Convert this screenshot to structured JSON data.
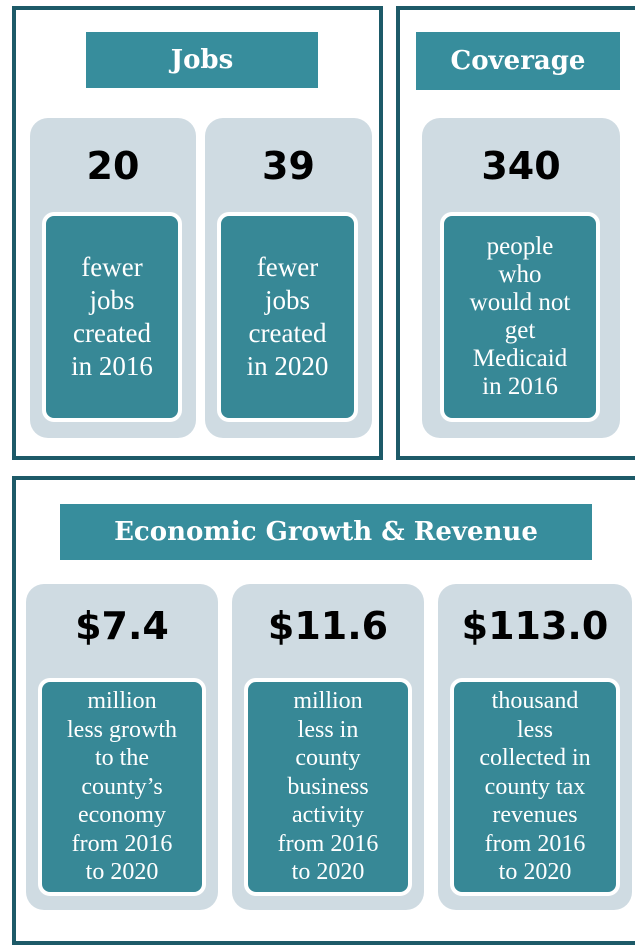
{
  "panels": [
    {
      "title": "Jobs",
      "cards": [
        {
          "figure": "20",
          "description": [
            "fewer",
            "jobs",
            "created",
            "in 2016"
          ]
        },
        {
          "figure": "39",
          "description": [
            "fewer",
            "jobs",
            "created",
            "in 2020"
          ]
        }
      ]
    },
    {
      "title": "Coverage",
      "cards": [
        {
          "figure": "340",
          "description": [
            "people",
            "who",
            "would not",
            "get",
            "Medicaid",
            "in 2016"
          ]
        }
      ]
    },
    {
      "title": "Economic Growth & Revenue",
      "cards": [
        {
          "figure": "$7.4",
          "description": [
            "million",
            "less growth",
            "to the",
            "county’s",
            "economy",
            "from 2016",
            "to 2020"
          ]
        },
        {
          "figure": "$11.6",
          "description": [
            "million",
            "less in",
            "county",
            "business",
            "activity",
            "from 2016",
            "to 2020"
          ]
        },
        {
          "figure": "$113.0",
          "description": [
            "thousand",
            "less",
            "collected in",
            "county tax",
            "revenues",
            "from 2016",
            "to 2020"
          ]
        }
      ]
    }
  ]
}
